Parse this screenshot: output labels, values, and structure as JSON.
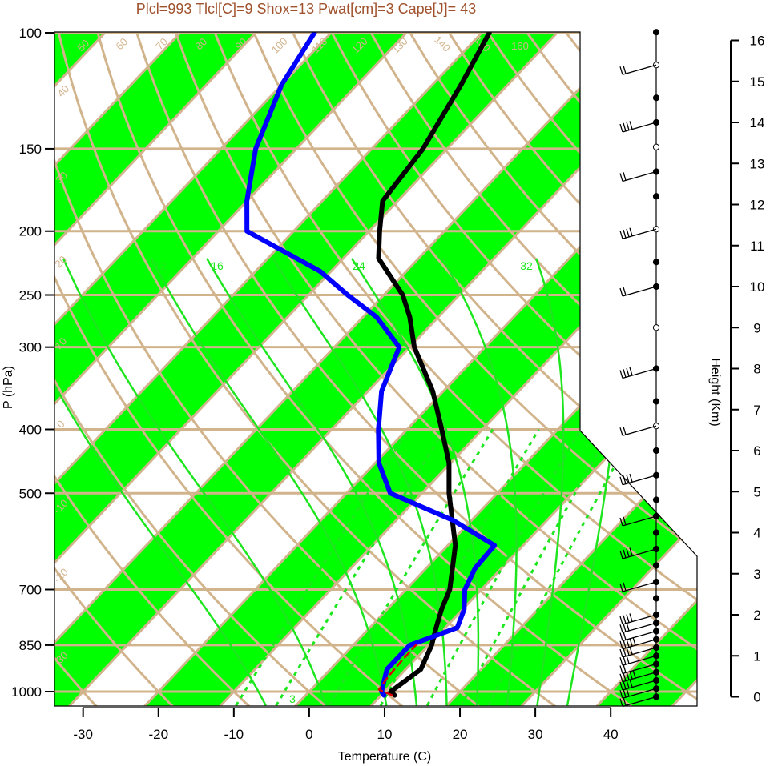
{
  "chart_data": {
    "type": "line",
    "chart_kind": "skew-T log-p diagram",
    "title": "Plcl=993 Tlcl[C]=9 Shox=13 Pwat[cm]=3 Cape[J]= 43",
    "xlabel": "Temperature (C)",
    "ylabel": "P (hPa)",
    "y2label": "Height (Km)",
    "log_scale_y": true,
    "xlim": [
      -33,
      52
    ],
    "ylim": [
      1050,
      100
    ],
    "x_ticks": [
      -30,
      -20,
      -10,
      0,
      10,
      20,
      30,
      40
    ],
    "y_ticks": [
      100,
      150,
      200,
      250,
      300,
      400,
      500,
      700,
      850,
      1000
    ],
    "height_ticks_km": [
      0,
      1,
      2,
      3,
      4,
      5,
      6,
      7,
      8,
      9,
      10,
      11,
      12,
      13,
      14,
      15,
      16
    ],
    "skew_labels_deg_c": [
      "-30",
      "-20",
      "-10",
      "0",
      "10",
      "20",
      "30",
      "40",
      "50",
      "60",
      "70",
      "80",
      "90",
      "100",
      "110",
      "120",
      "130",
      "140",
      "150",
      "160"
    ],
    "mixing_ratio_labels": [
      "3",
      "12",
      "16",
      "24",
      "32"
    ],
    "colors": {
      "temperature": "#000000",
      "dewpoint": "#0000ff",
      "parcel": "#dd0000",
      "isotherm_band": "#00ff00",
      "grid": "#d2b48c",
      "moist_adiabat": "#1ee61e"
    },
    "series": [
      {
        "role": "temperature",
        "p": [
          1013,
          1000,
          925,
          850,
          800,
          750,
          700,
          600,
          500,
          450,
          400,
          350,
          300,
          270,
          250,
          220,
          200,
          180,
          150,
          120,
          100
        ],
        "t": [
          11.8,
          10.8,
          12.0,
          10.4,
          8.8,
          7.2,
          5.8,
          1.0,
          -6.4,
          -10.2,
          -15.4,
          -21.4,
          -29.4,
          -33.8,
          -37.5,
          -45.3,
          -48.6,
          -52.0,
          -53.2,
          -56.2,
          -59.0
        ]
      },
      {
        "role": "dewpoint",
        "p": [
          1013,
          1000,
          925,
          850,
          800,
          750,
          700,
          650,
          600,
          550,
          500,
          450,
          400,
          350,
          300,
          270,
          250,
          230,
          200,
          180,
          150,
          120,
          100
        ],
        "t": [
          10.4,
          9.6,
          7.5,
          7.5,
          11.6,
          10.2,
          7.8,
          6.5,
          6.2,
          -2.4,
          -14.2,
          -19.5,
          -23.8,
          -28.2,
          -31.4,
          -38.2,
          -44.8,
          -51.5,
          -66.2,
          -70.0,
          -75.4,
          -80.0,
          -82.2
        ]
      },
      {
        "role": "parcel",
        "p": [
          1013,
          993,
          950,
          900,
          850
        ],
        "t": [
          11.5,
          9.0,
          8.6,
          8.4,
          8.3
        ]
      }
    ],
    "wind_barbs_km": [
      0,
      0.2,
      0.4,
      0.6,
      0.8,
      1.0,
      1.2,
      1.4,
      1.6,
      1.8,
      2.0,
      2.4,
      2.8,
      3.2,
      3.6,
      4.0,
      4.4,
      4.8,
      5.4,
      6.0,
      6.6,
      7.2,
      8.0,
      9.0,
      10.0,
      10.6,
      11.4,
      12.2,
      12.8,
      13.4,
      14.0,
      14.6,
      15.4,
      16.2
    ]
  }
}
